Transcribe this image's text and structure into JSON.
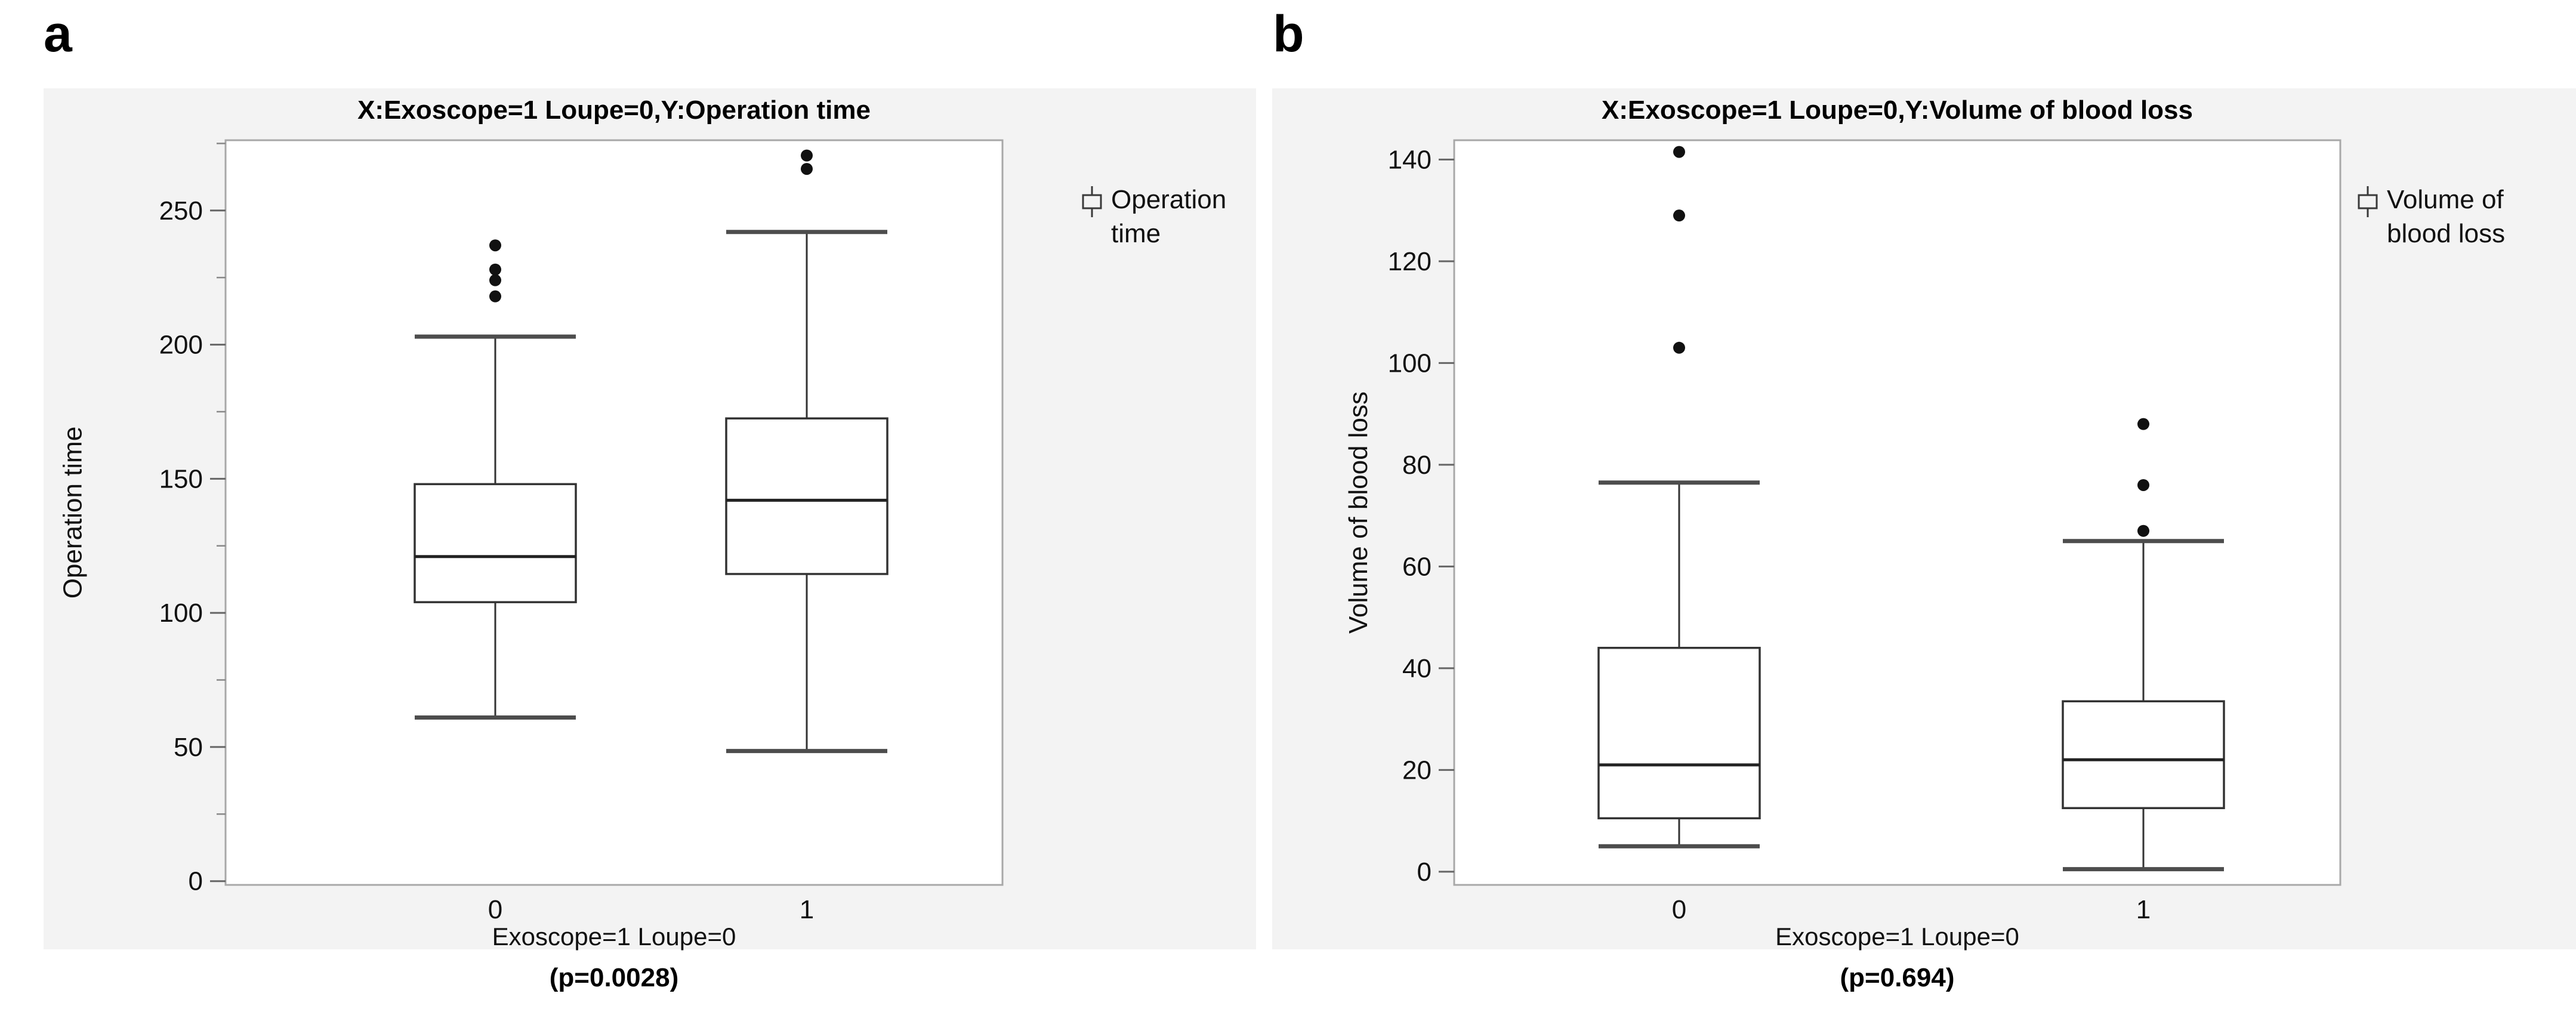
{
  "figure": {
    "panel_labels": [
      "a",
      "b"
    ]
  },
  "colors": {
    "panel_background": "#f3f3f3",
    "plot_background": "#ffffff",
    "axis_border": "#a8a8a8",
    "box_stroke": "#333333",
    "whisker_cap": "#4d4d4d",
    "median": "#222222",
    "outlier": "#111111",
    "tick": "#666666",
    "text": "#111111"
  },
  "chart_data": [
    {
      "type": "boxplot",
      "panel": "a",
      "title": "X:Exoscope=1 Loupe=0,Y:Operation time",
      "xlabel": "Exoscope=1  Loupe=0",
      "ylabel": "Operation time",
      "legend": [
        "Operation",
        "time"
      ],
      "legend_position": "top-right",
      "grid": false,
      "categories": [
        "0",
        "1"
      ],
      "yticks": [
        0,
        50,
        100,
        150,
        200,
        250
      ],
      "minor_tick_step": 25,
      "ylim": [
        -1.4,
        276.2
      ],
      "p_value": "(p=0.0028)",
      "series": [
        {
          "category": "0",
          "whisker_low": 61,
          "q1": 104,
          "median": 121,
          "q3": 148,
          "whisker_high": 203,
          "outliers": [
            218,
            224,
            228,
            237
          ]
        },
        {
          "category": "1",
          "whisker_low": 48.5,
          "q1": 114.5,
          "median": 142,
          "q3": 172.5,
          "whisker_high": 242,
          "outliers": [
            265.5,
            270.5
          ]
        }
      ]
    },
    {
      "type": "boxplot",
      "panel": "b",
      "title": "X:Exoscope=1 Loupe=0,Y:Volume of blood loss",
      "xlabel": "Exoscope=1 Loupe=0",
      "ylabel": "Volume of blood loss",
      "legend": [
        "Volume of",
        "blood loss"
      ],
      "legend_position": "top-right",
      "grid": false,
      "categories": [
        "0",
        "1"
      ],
      "yticks": [
        0,
        20,
        40,
        60,
        80,
        100,
        120,
        140
      ],
      "minor_tick_step": null,
      "ylim": [
        -2.6,
        143.8
      ],
      "p_value": "(p=0.694)",
      "series": [
        {
          "category": "0",
          "whisker_low": 5,
          "q1": 10.5,
          "median": 21,
          "q3": 44,
          "whisker_high": 76.5,
          "outliers": [
            103,
            129,
            141.5
          ]
        },
        {
          "category": "1",
          "whisker_low": 0.5,
          "q1": 12.5,
          "median": 22,
          "q3": 33.5,
          "whisker_high": 65,
          "outliers": [
            67,
            76,
            88
          ]
        }
      ]
    }
  ]
}
